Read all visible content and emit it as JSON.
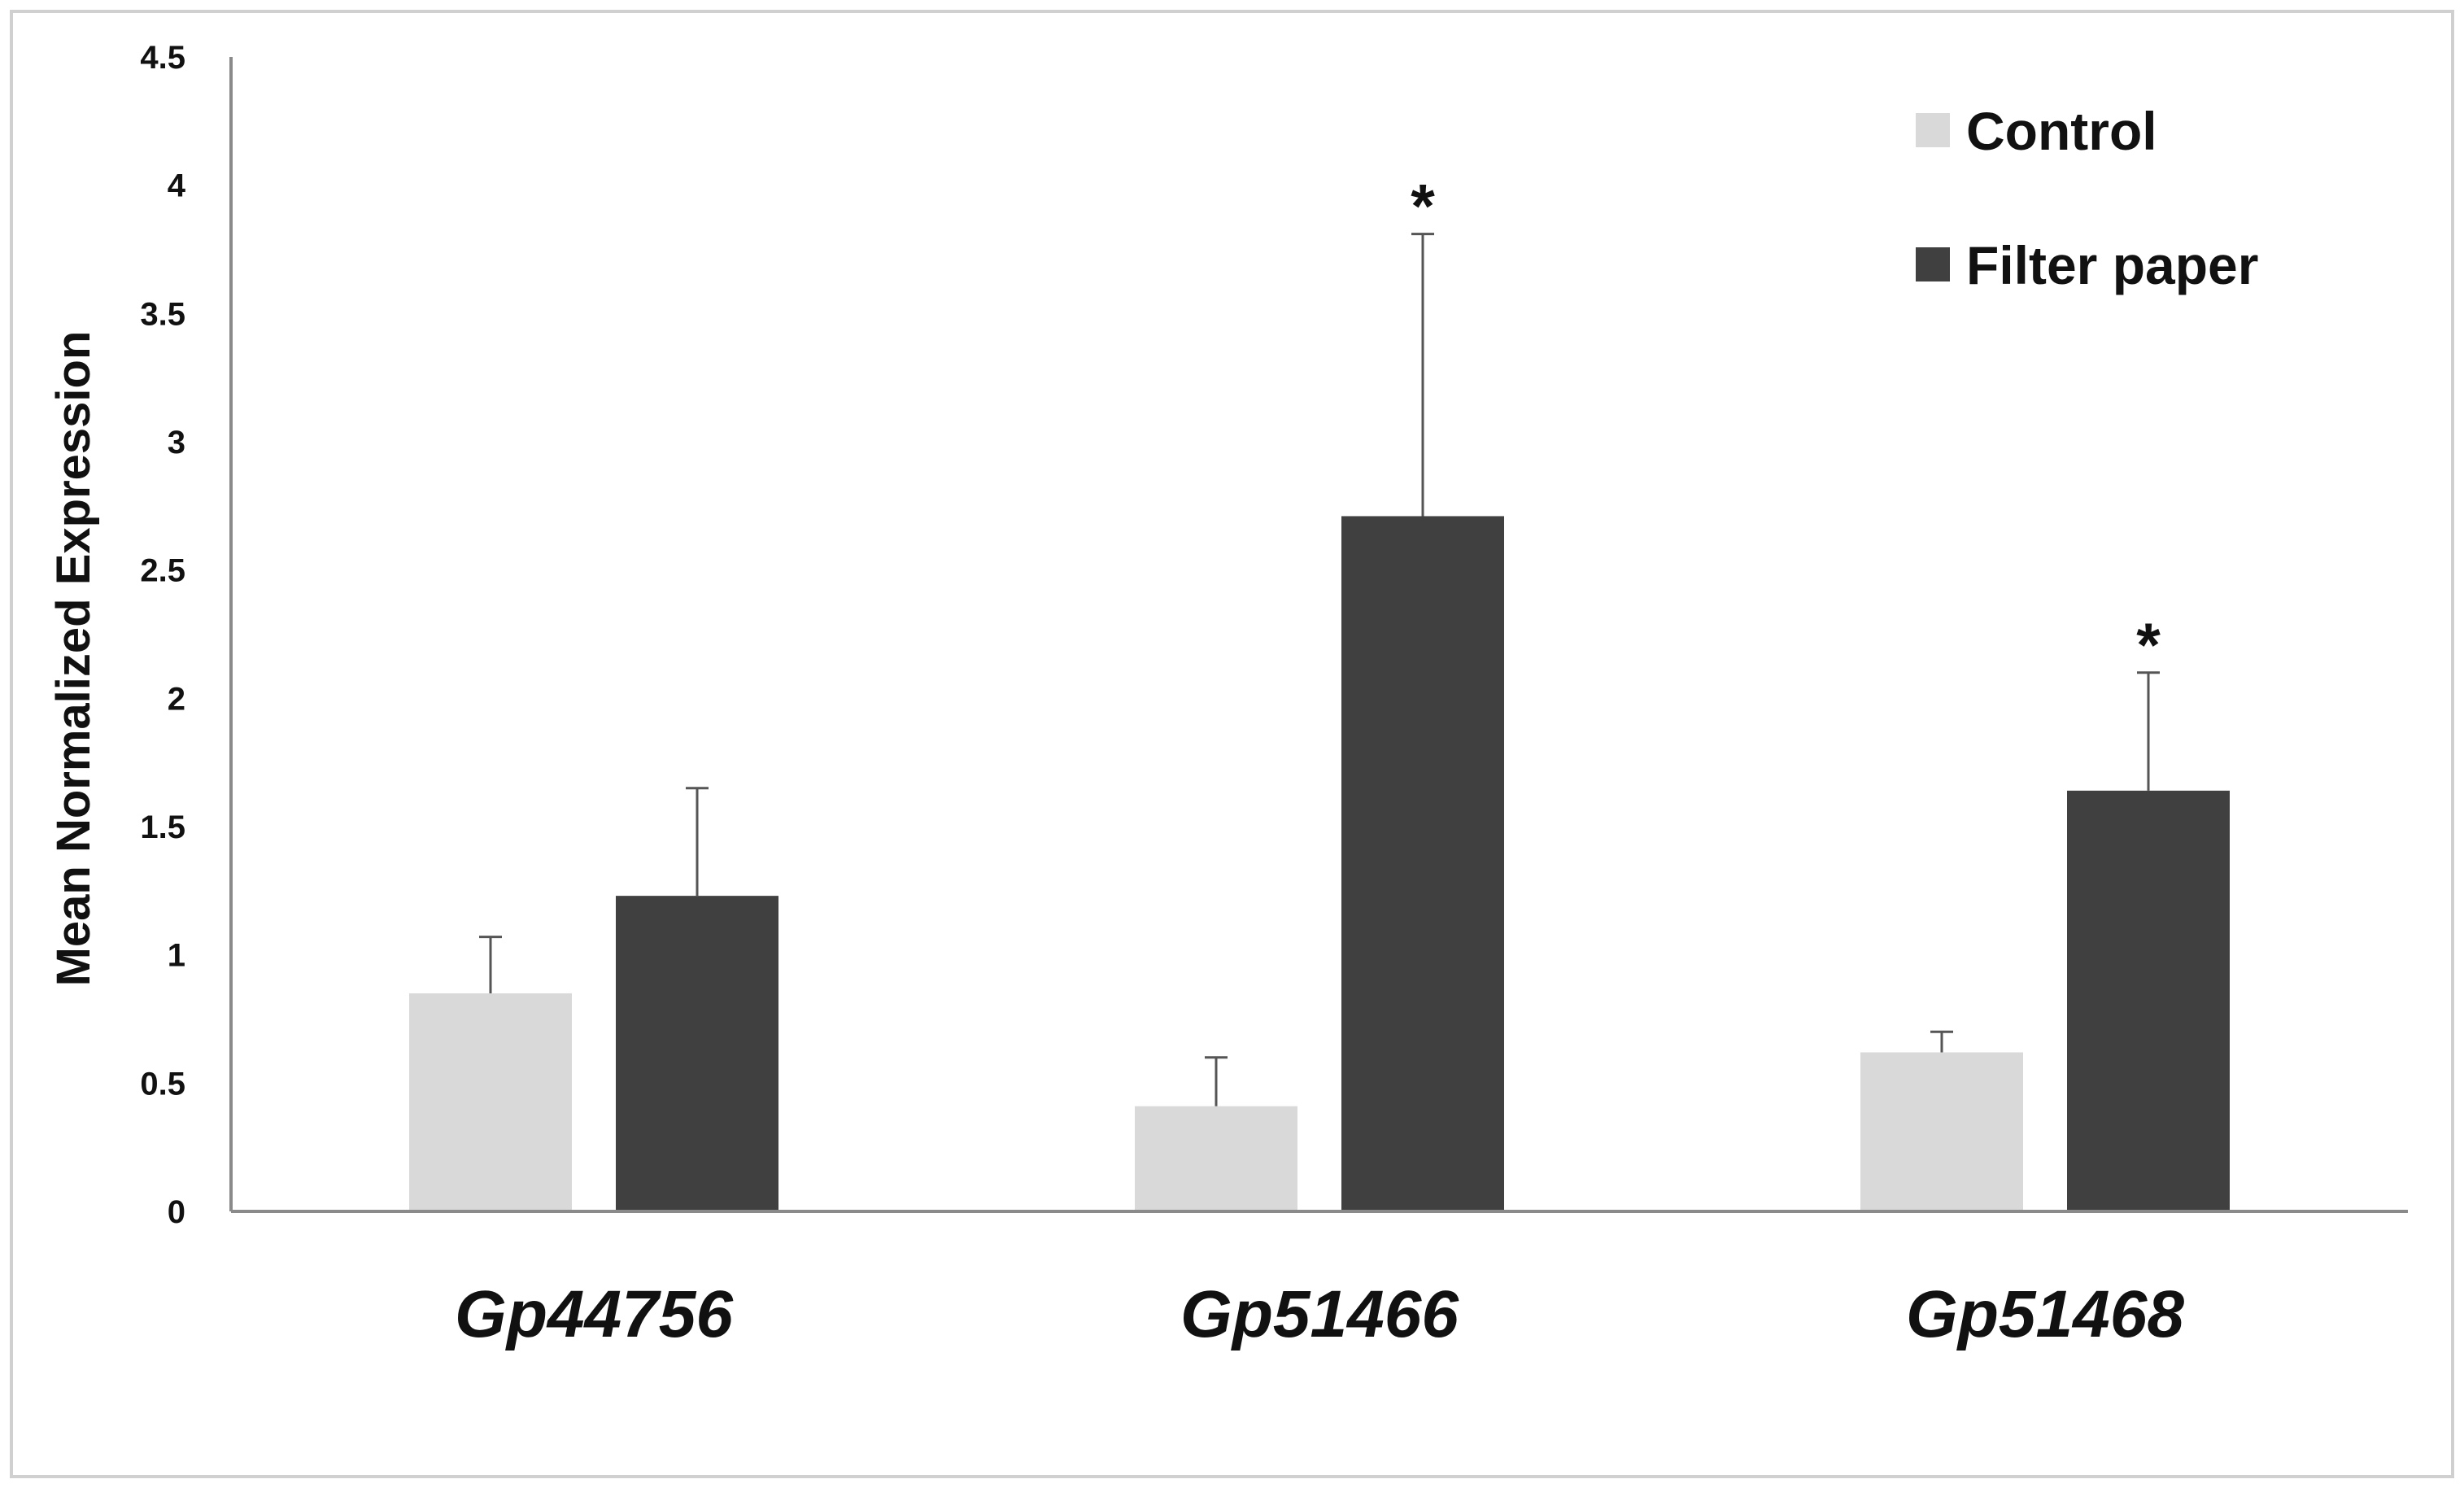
{
  "chart_data": {
    "type": "bar",
    "categories": [
      "Gp44756",
      "Gp51466",
      "Gp51468"
    ],
    "series": [
      {
        "name": "Control",
        "color": "#d9d9d9",
        "values": [
          0.85,
          0.41,
          0.62
        ],
        "errors": [
          0.22,
          0.19,
          0.08
        ]
      },
      {
        "name": "Filter paper",
        "color": "#404040",
        "values": [
          1.23,
          2.71,
          1.64
        ],
        "errors": [
          0.42,
          1.1,
          0.46
        ]
      }
    ],
    "significance": [
      {
        "category": 1,
        "series": 1,
        "label": "*"
      },
      {
        "category": 2,
        "series": 1,
        "label": "*"
      }
    ],
    "xlabel": "",
    "ylabel": "Mean Normalized Expression",
    "ylim": [
      0,
      4.5
    ],
    "yticks": [
      "0",
      "0.5",
      "1",
      "1.5",
      "2",
      "2.5",
      "3",
      "3.5",
      "4",
      "4.5"
    ],
    "grid": false,
    "legend_position": "top-right"
  }
}
